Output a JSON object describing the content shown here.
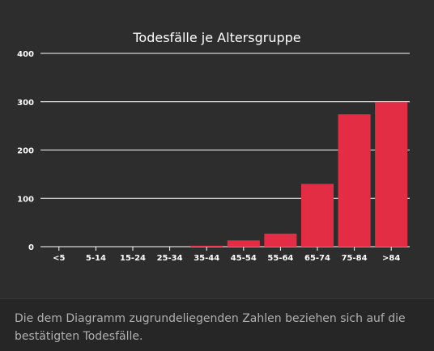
{
  "chart_data": {
    "type": "bar",
    "title": "Todesfälle je Altersgruppe",
    "categories": [
      "<5",
      "5-14",
      "15-24",
      "25-34",
      "35-44",
      "45-54",
      "55-64",
      "65-74",
      "75-84",
      ">84"
    ],
    "values": [
      0,
      0,
      0,
      0,
      2,
      13,
      27,
      130,
      274,
      299
    ],
    "xlabel": "",
    "ylabel": "",
    "ylim": [
      0,
      400
    ],
    "yticks": [
      "0",
      "100",
      "200",
      "300",
      "400"
    ],
    "grid": true,
    "legend": "none",
    "colors": {
      "bar": "#e22d45",
      "grid": "#ffffff",
      "background": "#2d2d2d"
    }
  },
  "caption": "Die dem Diagramm zugrundeliegenden Zahlen beziehen sich auf die bestätigten Todesfälle."
}
